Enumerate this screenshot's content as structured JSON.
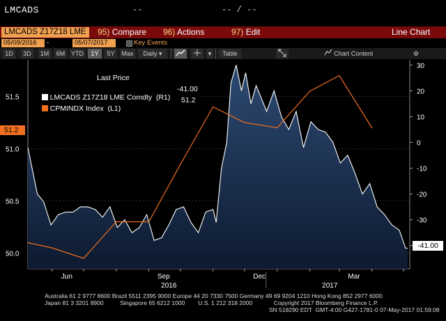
{
  "header": {
    "ticker": "LMCADS",
    "dash1": "--",
    "dash2": "-- / --"
  },
  "command_bar": {
    "security": "LMCADS Z17Z18 LME",
    "compare_num": "95)",
    "compare_label": "Compare",
    "actions_num": "96)",
    "actions_label": "Actions",
    "edit_num": "97)",
    "edit_label": "Edit",
    "chart_type": "Line Chart"
  },
  "date_range": {
    "start": "05/09/2016",
    "separator": "-",
    "end": "05/07/2017",
    "key_events_label": "Key Events"
  },
  "toolbar": {
    "periods": [
      "1D",
      "3D",
      "1M",
      "6M",
      "YTD",
      "1Y",
      "5Y",
      "Max"
    ],
    "selected_period": "1Y",
    "frequency": "Daily",
    "table_label": "Table",
    "chart_content_label": "Chart Content"
  },
  "legend": {
    "header": "Last Price",
    "series1_label": "LMCADS Z17Z18 LME Comdty  (R1)",
    "series1_value": "-41.00",
    "series1_color": "#ffffff",
    "series2_label": "CPMINDX Index  (L1)",
    "series2_value": "51.2",
    "series2_color": "#f07020"
  },
  "markers": {
    "right_last": "-41.00",
    "left_last": "51.2"
  },
  "footer": {
    "line1": "Australia 61 2 9777 8600 Brazil 5511 2395 9000 Europe 44 20 7330 7500 Germany 49 69 9204 1210 Hong Kong 852 2977 6000",
    "line2": "Japan 81 3 3201 8900          Singapore 65 6212 1000        U.S. 1 212 318 2000             Copyright 2017 Bloomberg Finance L.P.",
    "line3": "SN 518290 EDT  GMT-4:00 G427-1781-0 07-May-2017 01:59:08"
  },
  "chart_data": {
    "type": "line",
    "x_tick_labels": [
      "Jun",
      "Sep",
      "Dec",
      "Mar"
    ],
    "x_year_labels": [
      "2016",
      "2017"
    ],
    "left_axis": {
      "label": "CPMINDX Index (L1)",
      "ticks": [
        50.0,
        50.5,
        51.0,
        51.5
      ],
      "ylim": [
        49.85,
        51.85
      ]
    },
    "right_axis": {
      "label": "LMCADS Z17Z18 LME Comdty (R1)",
      "ticks": [
        30,
        20,
        10,
        0,
        -10,
        -20,
        -30,
        -40
      ],
      "ylim": [
        -49,
        32
      ]
    },
    "x_range": [
      "2016-05-09",
      "2017-05-07"
    ],
    "series": [
      {
        "name": "CPMINDX Index",
        "axis": "left",
        "color": "#f07020",
        "x": [
          "2016-05-09",
          "2016-06-01",
          "2016-07-01",
          "2016-08-01",
          "2016-09-01",
          "2016-10-01",
          "2016-11-01",
          "2016-12-01",
          "2017-01-01",
          "2017-02-01",
          "2017-03-01",
          "2017-04-01"
        ],
        "y": [
          50.1,
          50.05,
          49.95,
          50.3,
          50.3,
          50.85,
          51.4,
          51.25,
          51.2,
          51.55,
          51.7,
          51.2
        ]
      },
      {
        "name": "LMCADS Z17Z18 LME Comdty",
        "axis": "right",
        "color": "#ffffff",
        "x": [
          "2016-05-09",
          "2016-05-13",
          "2016-05-18",
          "2016-05-24",
          "2016-05-31",
          "2016-06-07",
          "2016-06-14",
          "2016-06-21",
          "2016-06-28",
          "2016-07-05",
          "2016-07-12",
          "2016-07-19",
          "2016-07-26",
          "2016-08-02",
          "2016-08-09",
          "2016-08-16",
          "2016-08-23",
          "2016-08-30",
          "2016-09-06",
          "2016-09-13",
          "2016-09-20",
          "2016-09-27",
          "2016-10-04",
          "2016-10-11",
          "2016-10-18",
          "2016-10-25",
          "2016-11-01",
          "2016-11-04",
          "2016-11-09",
          "2016-11-14",
          "2016-11-18",
          "2016-11-23",
          "2016-11-28",
          "2016-12-02",
          "2016-12-07",
          "2016-12-12",
          "2016-12-16",
          "2016-12-22",
          "2016-12-29",
          "2017-01-05",
          "2017-01-12",
          "2017-01-19",
          "2017-01-26",
          "2017-02-02",
          "2017-02-09",
          "2017-02-16",
          "2017-02-23",
          "2017-03-02",
          "2017-03-09",
          "2017-03-16",
          "2017-03-23",
          "2017-03-30",
          "2017-04-06",
          "2017-04-13",
          "2017-04-20",
          "2017-04-27",
          "2017-05-03",
          "2017-05-05"
        ],
        "y": [
          -2,
          -10,
          -20,
          -23,
          -32,
          -28,
          -27,
          -27,
          -25,
          -25,
          -26,
          -29,
          -25,
          -33,
          -30,
          -35,
          -33,
          -28,
          -38,
          -37,
          -32,
          -26,
          -25,
          -31,
          -35,
          -27,
          -26,
          -31,
          -10,
          0,
          23,
          30,
          20,
          27,
          15,
          22,
          18,
          12,
          20,
          10,
          5,
          12,
          -2,
          8,
          5,
          4,
          0,
          -8,
          -5,
          -12,
          -20,
          -16,
          -25,
          -28,
          -32,
          -34,
          -41,
          -41
        ]
      }
    ]
  }
}
